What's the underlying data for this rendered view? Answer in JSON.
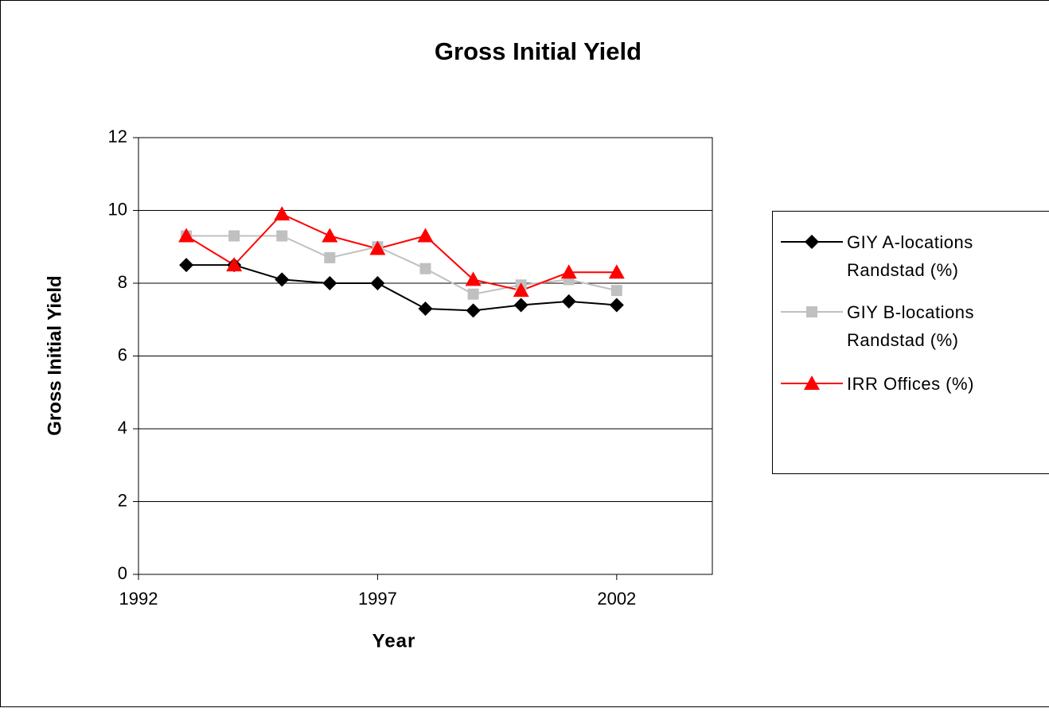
{
  "chart_data": {
    "type": "line",
    "title": "Gross Initial Yield",
    "x_label": "Year",
    "y_label": "Gross Initial Yield",
    "x": [
      1993,
      1994,
      1995,
      1996,
      1997,
      1998,
      1999,
      2000,
      2001,
      2002
    ],
    "series": [
      {
        "name": "GIY A-locations Randstad (%)",
        "color": "#000000",
        "marker": "diamond",
        "values": [
          8.5,
          8.5,
          8.1,
          8.0,
          8.0,
          7.3,
          7.25,
          7.4,
          7.5,
          7.4
        ]
      },
      {
        "name": "GIY B-locations Randstad (%)",
        "color": "#c0c0c0",
        "marker": "square",
        "values": [
          9.3,
          9.3,
          9.3,
          8.7,
          9.0,
          8.4,
          7.7,
          7.95,
          8.1,
          7.8
        ]
      },
      {
        "name": "IRR Offices (%)",
        "color": "#ff0000",
        "marker": "triangle",
        "values": [
          9.3,
          8.5,
          9.9,
          9.3,
          8.95,
          9.3,
          8.1,
          7.8,
          8.3,
          8.3
        ]
      }
    ],
    "xlim": [
      1992,
      2004
    ],
    "xticks": [
      1992,
      1997,
      2002
    ],
    "ylim": [
      0,
      12
    ],
    "yticks": [
      0,
      2,
      4,
      6,
      8,
      10,
      12
    ],
    "grid": true,
    "legend": "right"
  }
}
